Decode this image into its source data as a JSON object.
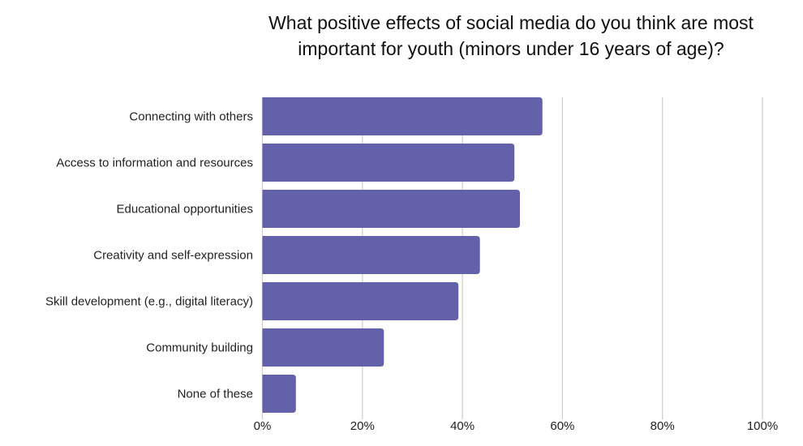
{
  "chart_data": {
    "type": "bar",
    "orientation": "horizontal",
    "title": "What positive effects of social media do you think are most important for youth (minors under 16 years of age)?",
    "categories": [
      "Connecting with others",
      "Access to information and resources",
      "Educational opportunities",
      "Creativity and self-expression",
      "Skill development (e.g., digital literacy)",
      "Community building",
      "None of these"
    ],
    "values": [
      56,
      50.4,
      51.5,
      43.5,
      39.2,
      24.3,
      6.7
    ],
    "unit": "%",
    "xlim": [
      0,
      100
    ],
    "xticks": [
      "0%",
      "20%",
      "40%",
      "60%",
      "80%",
      "100%"
    ],
    "xlabel": "",
    "ylabel": "",
    "grid": true,
    "bar_color": "#6461ab",
    "grid_color": "#d0d0d0"
  }
}
